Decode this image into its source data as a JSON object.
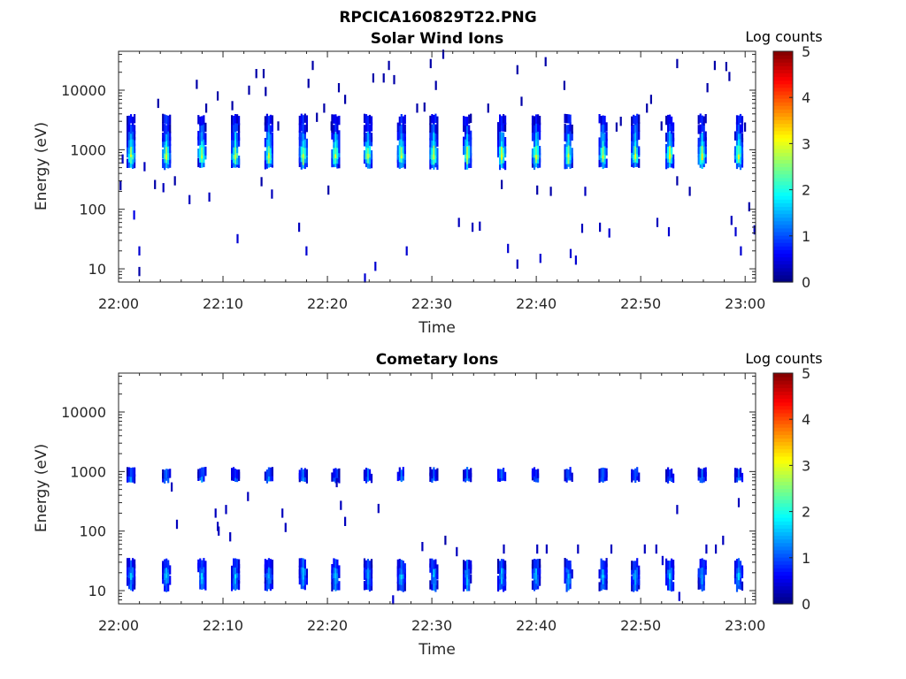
{
  "figure_title": "RPCICA160829T22.PNG",
  "chart_data": [
    {
      "type": "heatmap",
      "title": "Solar Wind Ions",
      "xlabel": "Time",
      "ylabel": "Energy (eV)",
      "x_ticks": [
        "22:00",
        "22:10",
        "22:20",
        "22:30",
        "22:40",
        "22:50",
        "23:00"
      ],
      "y_ticks": [
        "10",
        "100",
        "1000",
        "10000"
      ],
      "y_scale": "log",
      "ylim": [
        6,
        45000
      ],
      "colorbar": {
        "label": "Log counts",
        "ticks": [
          "0",
          "1",
          "2",
          "3",
          "4",
          "5"
        ],
        "range": [
          0,
          5
        ],
        "colormap": "jet"
      },
      "sweep_minutes": [
        1.1,
        4.5,
        7.9,
        11.1,
        14.3,
        17.6,
        20.7,
        23.8,
        27.0,
        30.1,
        33.3,
        36.6,
        39.9,
        43.0,
        46.3,
        49.4,
        52.7,
        55.8,
        59.3
      ],
      "main_band": [
        {
          "e": 580,
          "v": 1.5
        },
        {
          "e": 700,
          "v": 2.4
        },
        {
          "e": 850,
          "v": 3.0
        },
        {
          "e": 1000,
          "v": 2.5
        },
        {
          "e": 1350,
          "v": 1.8
        },
        {
          "e": 1700,
          "v": 1.5
        },
        {
          "e": 2300,
          "v": 1.0
        },
        {
          "e": 3200,
          "v": 0.8
        }
      ],
      "scatter": [
        {
          "t": 0.1,
          "e": 250,
          "v": 0.2
        },
        {
          "t": 0.3,
          "e": 700,
          "v": 0.3
        },
        {
          "t": 1.4,
          "e": 80,
          "v": 0.5
        },
        {
          "t": 1.9,
          "e": 9,
          "v": 0.2
        },
        {
          "t": 1.9,
          "e": 20,
          "v": 0.4
        },
        {
          "t": 2.4,
          "e": 520,
          "v": 0.3
        },
        {
          "t": 3.4,
          "e": 260,
          "v": 0.2
        },
        {
          "t": 3.7,
          "e": 6000,
          "v": 0.2
        },
        {
          "t": 4.2,
          "e": 230,
          "v": 0.3
        },
        {
          "t": 5.3,
          "e": 300,
          "v": 0.2
        },
        {
          "t": 6.7,
          "e": 145,
          "v": 0.3
        },
        {
          "t": 7.4,
          "e": 12500,
          "v": 0.2
        },
        {
          "t": 8.3,
          "e": 5000,
          "v": 0.2
        },
        {
          "t": 8.6,
          "e": 160,
          "v": 0.3
        },
        {
          "t": 9.4,
          "e": 8000,
          "v": 0.2
        },
        {
          "t": 10.8,
          "e": 5500,
          "v": 0.2
        },
        {
          "t": 11.3,
          "e": 32,
          "v": 0.4
        },
        {
          "t": 12.4,
          "e": 10000,
          "v": 0.2
        },
        {
          "t": 13.1,
          "e": 19000,
          "v": 0.2
        },
        {
          "t": 13.8,
          "e": 19000,
          "v": 0.2
        },
        {
          "t": 14.0,
          "e": 9500,
          "v": 0.2
        },
        {
          "t": 13.6,
          "e": 290,
          "v": 0.2
        },
        {
          "t": 14.6,
          "e": 180,
          "v": 0.3
        },
        {
          "t": 15.2,
          "e": 2500,
          "v": 0.2
        },
        {
          "t": 17.2,
          "e": 50,
          "v": 0.3
        },
        {
          "t": 17.9,
          "e": 20,
          "v": 0.4
        },
        {
          "t": 18.1,
          "e": 13000,
          "v": 0.2
        },
        {
          "t": 18.5,
          "e": 26000,
          "v": 0.2
        },
        {
          "t": 18.9,
          "e": 3500,
          "v": 0.2
        },
        {
          "t": 19.6,
          "e": 5000,
          "v": 0.2
        },
        {
          "t": 20.3,
          "e": 2500,
          "v": 0.2
        },
        {
          "t": 20.0,
          "e": 210,
          "v": 0.2
        },
        {
          "t": 21.0,
          "e": 11000,
          "v": 0.2
        },
        {
          "t": 21.6,
          "e": 7000,
          "v": 0.2
        },
        {
          "t": 23.5,
          "e": 7,
          "v": 0.4
        },
        {
          "t": 24.5,
          "e": 11,
          "v": 0.4
        },
        {
          "t": 24.3,
          "e": 16000,
          "v": 0.2
        },
        {
          "t": 25.3,
          "e": 16000,
          "v": 0.2
        },
        {
          "t": 25.8,
          "e": 26000,
          "v": 0.2
        },
        {
          "t": 26.3,
          "e": 15000,
          "v": 0.2
        },
        {
          "t": 27.5,
          "e": 20,
          "v": 0.4
        },
        {
          "t": 28.5,
          "e": 5000,
          "v": 0.2
        },
        {
          "t": 29.2,
          "e": 5200,
          "v": 0.2
        },
        {
          "t": 29.8,
          "e": 28000,
          "v": 0.2
        },
        {
          "t": 31.0,
          "e": 40000,
          "v": 0.2
        },
        {
          "t": 30.3,
          "e": 12000,
          "v": 0.2
        },
        {
          "t": 32.5,
          "e": 60,
          "v": 0.3
        },
        {
          "t": 33.8,
          "e": 50,
          "v": 0.3
        },
        {
          "t": 34.5,
          "e": 52,
          "v": 0.3
        },
        {
          "t": 35.3,
          "e": 5000,
          "v": 0.2
        },
        {
          "t": 36.6,
          "e": 260,
          "v": 0.2
        },
        {
          "t": 37.2,
          "e": 22,
          "v": 0.4
        },
        {
          "t": 38.1,
          "e": 12,
          "v": 0.3
        },
        {
          "t": 38.1,
          "e": 22000,
          "v": 0.2
        },
        {
          "t": 38.5,
          "e": 6500,
          "v": 0.2
        },
        {
          "t": 40.0,
          "e": 210,
          "v": 0.2
        },
        {
          "t": 40.3,
          "e": 15,
          "v": 0.4
        },
        {
          "t": 40.8,
          "e": 30000,
          "v": 0.2
        },
        {
          "t": 41.3,
          "e": 200,
          "v": 0.2
        },
        {
          "t": 42.6,
          "e": 12000,
          "v": 0.2
        },
        {
          "t": 43.2,
          "e": 18,
          "v": 0.4
        },
        {
          "t": 43.7,
          "e": 14,
          "v": 0.4
        },
        {
          "t": 44.3,
          "e": 48,
          "v": 0.3
        },
        {
          "t": 44.6,
          "e": 200,
          "v": 0.3
        },
        {
          "t": 46.0,
          "e": 50,
          "v": 0.3
        },
        {
          "t": 46.9,
          "e": 40,
          "v": 0.4
        },
        {
          "t": 47.6,
          "e": 2400,
          "v": 0.2
        },
        {
          "t": 48.0,
          "e": 3000,
          "v": 0.2
        },
        {
          "t": 50.5,
          "e": 5000,
          "v": 0.2
        },
        {
          "t": 50.9,
          "e": 7000,
          "v": 0.2
        },
        {
          "t": 51.5,
          "e": 60,
          "v": 0.3
        },
        {
          "t": 51.9,
          "e": 2500,
          "v": 0.2
        },
        {
          "t": 52.6,
          "e": 42,
          "v": 0.4
        },
        {
          "t": 53.4,
          "e": 28000,
          "v": 0.2
        },
        {
          "t": 53.4,
          "e": 300,
          "v": 0.2
        },
        {
          "t": 54.6,
          "e": 200,
          "v": 0.2
        },
        {
          "t": 56.3,
          "e": 11000,
          "v": 0.2
        },
        {
          "t": 57.0,
          "e": 26000,
          "v": 0.2
        },
        {
          "t": 58.1,
          "e": 25000,
          "v": 0.2
        },
        {
          "t": 58.4,
          "e": 17000,
          "v": 0.2
        },
        {
          "t": 58.6,
          "e": 65,
          "v": 0.3
        },
        {
          "t": 59.0,
          "e": 42,
          "v": 0.4
        },
        {
          "t": 59.5,
          "e": 20,
          "v": 0.4
        },
        {
          "t": 59.9,
          "e": 2400,
          "v": 0.2
        },
        {
          "t": 60.3,
          "e": 110,
          "v": 0.2
        },
        {
          "t": 60.8,
          "e": 45,
          "v": 0.3
        }
      ]
    },
    {
      "type": "heatmap",
      "title": "Cometary Ions",
      "xlabel": "Time",
      "ylabel": "Energy (eV)",
      "x_ticks": [
        "22:00",
        "22:10",
        "22:20",
        "22:30",
        "22:40",
        "22:50",
        "23:00"
      ],
      "y_ticks": [
        "10",
        "100",
        "1000",
        "10000"
      ],
      "y_scale": "log",
      "ylim": [
        6,
        45000
      ],
      "colorbar": {
        "label": "Log counts",
        "ticks": [
          "0",
          "1",
          "2",
          "3",
          "4",
          "5"
        ],
        "range": [
          0,
          5
        ],
        "colormap": "jet"
      },
      "sweep_minutes": [
        1.1,
        4.5,
        7.9,
        11.1,
        14.3,
        17.6,
        20.7,
        23.8,
        27.0,
        30.1,
        33.3,
        36.6,
        39.9,
        43.0,
        46.3,
        49.4,
        52.7,
        55.8,
        59.3
      ],
      "main_band": [
        {
          "e": 12,
          "v": 1.2
        },
        {
          "e": 15,
          "v": 1.4
        },
        {
          "e": 19,
          "v": 1.6
        },
        {
          "e": 23,
          "v": 1.4
        },
        {
          "e": 28,
          "v": 1.0
        },
        {
          "e": 800,
          "v": 1.2
        },
        {
          "e": 950,
          "v": 1.0
        }
      ],
      "scatter": [
        {
          "t": 5.5,
          "e": 130,
          "v": 0.3
        },
        {
          "t": 5.0,
          "e": 550,
          "v": 0.3
        },
        {
          "t": 9.2,
          "e": 200,
          "v": 0.3
        },
        {
          "t": 9.4,
          "e": 120,
          "v": 0.3
        },
        {
          "t": 9.5,
          "e": 100,
          "v": 0.3
        },
        {
          "t": 10.2,
          "e": 230,
          "v": 0.3
        },
        {
          "t": 10.6,
          "e": 80,
          "v": 0.3
        },
        {
          "t": 12.3,
          "e": 380,
          "v": 0.3
        },
        {
          "t": 15.6,
          "e": 200,
          "v": 0.3
        },
        {
          "t": 15.9,
          "e": 115,
          "v": 0.3
        },
        {
          "t": 20.8,
          "e": 650,
          "v": 0.3
        },
        {
          "t": 21.2,
          "e": 270,
          "v": 0.3
        },
        {
          "t": 21.6,
          "e": 145,
          "v": 0.3
        },
        {
          "t": 24.8,
          "e": 240,
          "v": 0.3
        },
        {
          "t": 26.2,
          "e": 7,
          "v": 0.4
        },
        {
          "t": 29.0,
          "e": 55,
          "v": 0.3
        },
        {
          "t": 31.2,
          "e": 70,
          "v": 0.2
        },
        {
          "t": 32.3,
          "e": 45,
          "v": 0.3
        },
        {
          "t": 36.8,
          "e": 50,
          "v": 0.3
        },
        {
          "t": 40.0,
          "e": 50,
          "v": 0.3
        },
        {
          "t": 40.9,
          "e": 50,
          "v": 0.3
        },
        {
          "t": 43.9,
          "e": 50,
          "v": 0.3
        },
        {
          "t": 47.1,
          "e": 50,
          "v": 0.3
        },
        {
          "t": 50.3,
          "e": 50,
          "v": 0.3
        },
        {
          "t": 51.4,
          "e": 50,
          "v": 0.3
        },
        {
          "t": 52.0,
          "e": 32,
          "v": 0.4
        },
        {
          "t": 53.4,
          "e": 230,
          "v": 0.3
        },
        {
          "t": 53.6,
          "e": 8,
          "v": 0.4
        },
        {
          "t": 56.2,
          "e": 50,
          "v": 0.3
        },
        {
          "t": 57.1,
          "e": 50,
          "v": 0.3
        },
        {
          "t": 57.8,
          "e": 70,
          "v": 0.3
        },
        {
          "t": 59.3,
          "e": 300,
          "v": 0.3
        }
      ]
    }
  ]
}
